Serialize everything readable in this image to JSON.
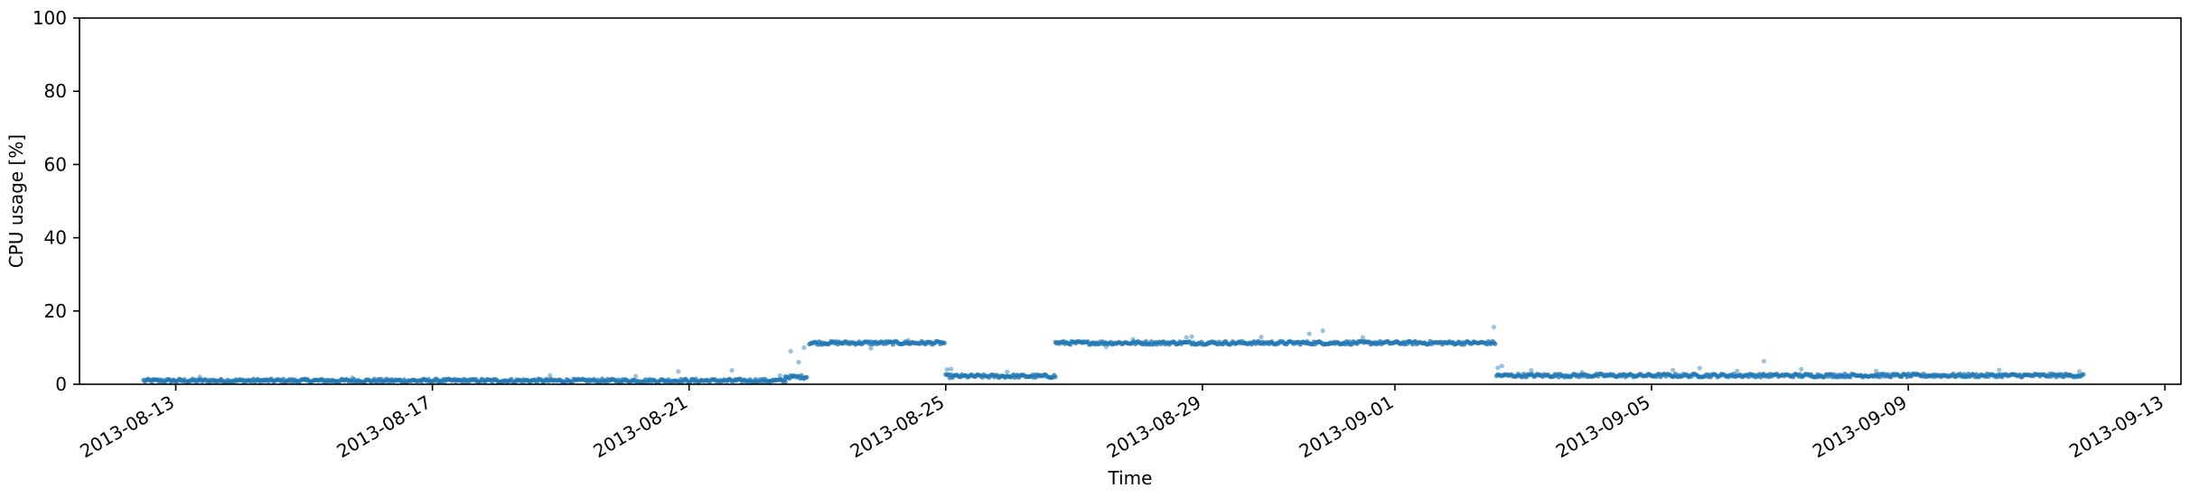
{
  "chart_data": {
    "type": "scatter",
    "title": "",
    "xlabel": "Time",
    "ylabel": "CPU usage [%]",
    "xlim": [
      "2013-08-11T12:00",
      "2013-09-13T06:00"
    ],
    "ylim": [
      0,
      100
    ],
    "grid": false,
    "legend": "none",
    "x_ticks": [
      "2013-08-13",
      "2013-08-17",
      "2013-08-21",
      "2013-08-25",
      "2013-08-29",
      "2013-09-01",
      "2013-09-05",
      "2013-09-09",
      "2013-09-13"
    ],
    "y_ticks": [
      0,
      20,
      40,
      60,
      80,
      100
    ],
    "marker_color": "#1f77b4",
    "segments": [
      {
        "start": "2013-08-12T12:00",
        "end": "2013-08-22T12:00",
        "value": 1.0
      },
      {
        "start": "2013-08-22T12:00",
        "end": "2013-08-22T20:00",
        "value": 2.0
      },
      {
        "start": "2013-08-22T21:00",
        "end": "2013-08-25T00:00",
        "value": 11.3
      },
      {
        "start": "2013-08-25T00:00",
        "end": "2013-08-26T17:00",
        "value": 2.2
      },
      {
        "start": "2013-08-26T17:00",
        "end": "2013-09-02T14:00",
        "value": 11.3
      },
      {
        "start": "2013-09-02T14:00",
        "end": "2013-09-11T18:00",
        "value": 2.4
      }
    ],
    "outliers": [
      {
        "x": "2013-08-13T09:00",
        "y": 2.0
      },
      {
        "x": "2013-08-15T18:00",
        "y": 1.8
      },
      {
        "x": "2013-08-18T20:00",
        "y": 2.4
      },
      {
        "x": "2013-08-20T04:00",
        "y": 2.2
      },
      {
        "x": "2013-08-20T20:00",
        "y": 3.5
      },
      {
        "x": "2013-08-21T16:00",
        "y": 3.8
      },
      {
        "x": "2013-08-22T10:00",
        "y": 2.4
      },
      {
        "x": "2013-08-22T14:00",
        "y": 9.0
      },
      {
        "x": "2013-08-22T17:00",
        "y": 6.0
      },
      {
        "x": "2013-08-22T19:00",
        "y": 10.0
      },
      {
        "x": "2013-08-23T20:00",
        "y": 9.8
      },
      {
        "x": "2013-08-24T10:00",
        "y": 12.0
      },
      {
        "x": "2013-08-25T00:30",
        "y": 4.0
      },
      {
        "x": "2013-08-25T02:00",
        "y": 4.2
      },
      {
        "x": "2013-08-25T23:00",
        "y": 3.4
      },
      {
        "x": "2013-08-27T12:00",
        "y": 10.2
      },
      {
        "x": "2013-08-27T22:00",
        "y": 12.3
      },
      {
        "x": "2013-08-28T18:00",
        "y": 12.8
      },
      {
        "x": "2013-08-28T20:00",
        "y": 13.0
      },
      {
        "x": "2013-08-29T22:00",
        "y": 12.9
      },
      {
        "x": "2013-08-30T16:00",
        "y": 13.8
      },
      {
        "x": "2013-08-30T21:00",
        "y": 14.6
      },
      {
        "x": "2013-08-31T12:00",
        "y": 12.8
      },
      {
        "x": "2013-09-02T13:00",
        "y": 15.6
      },
      {
        "x": "2013-09-02T14:30",
        "y": 4.5
      },
      {
        "x": "2013-09-02T16:00",
        "y": 5.0
      },
      {
        "x": "2013-09-03T03:00",
        "y": 3.8
      },
      {
        "x": "2013-09-03T22:00",
        "y": 3.3
      },
      {
        "x": "2013-09-05T08:00",
        "y": 3.9
      },
      {
        "x": "2013-09-05T18:00",
        "y": 4.4
      },
      {
        "x": "2013-09-06T08:00",
        "y": 3.6
      },
      {
        "x": "2013-09-06T18:00",
        "y": 6.3
      },
      {
        "x": "2013-09-07T08:00",
        "y": 4.1
      },
      {
        "x": "2013-09-08T12:00",
        "y": 3.6
      },
      {
        "x": "2013-09-10T10:00",
        "y": 3.9
      },
      {
        "x": "2013-09-11T16:00",
        "y": 3.5
      }
    ]
  }
}
